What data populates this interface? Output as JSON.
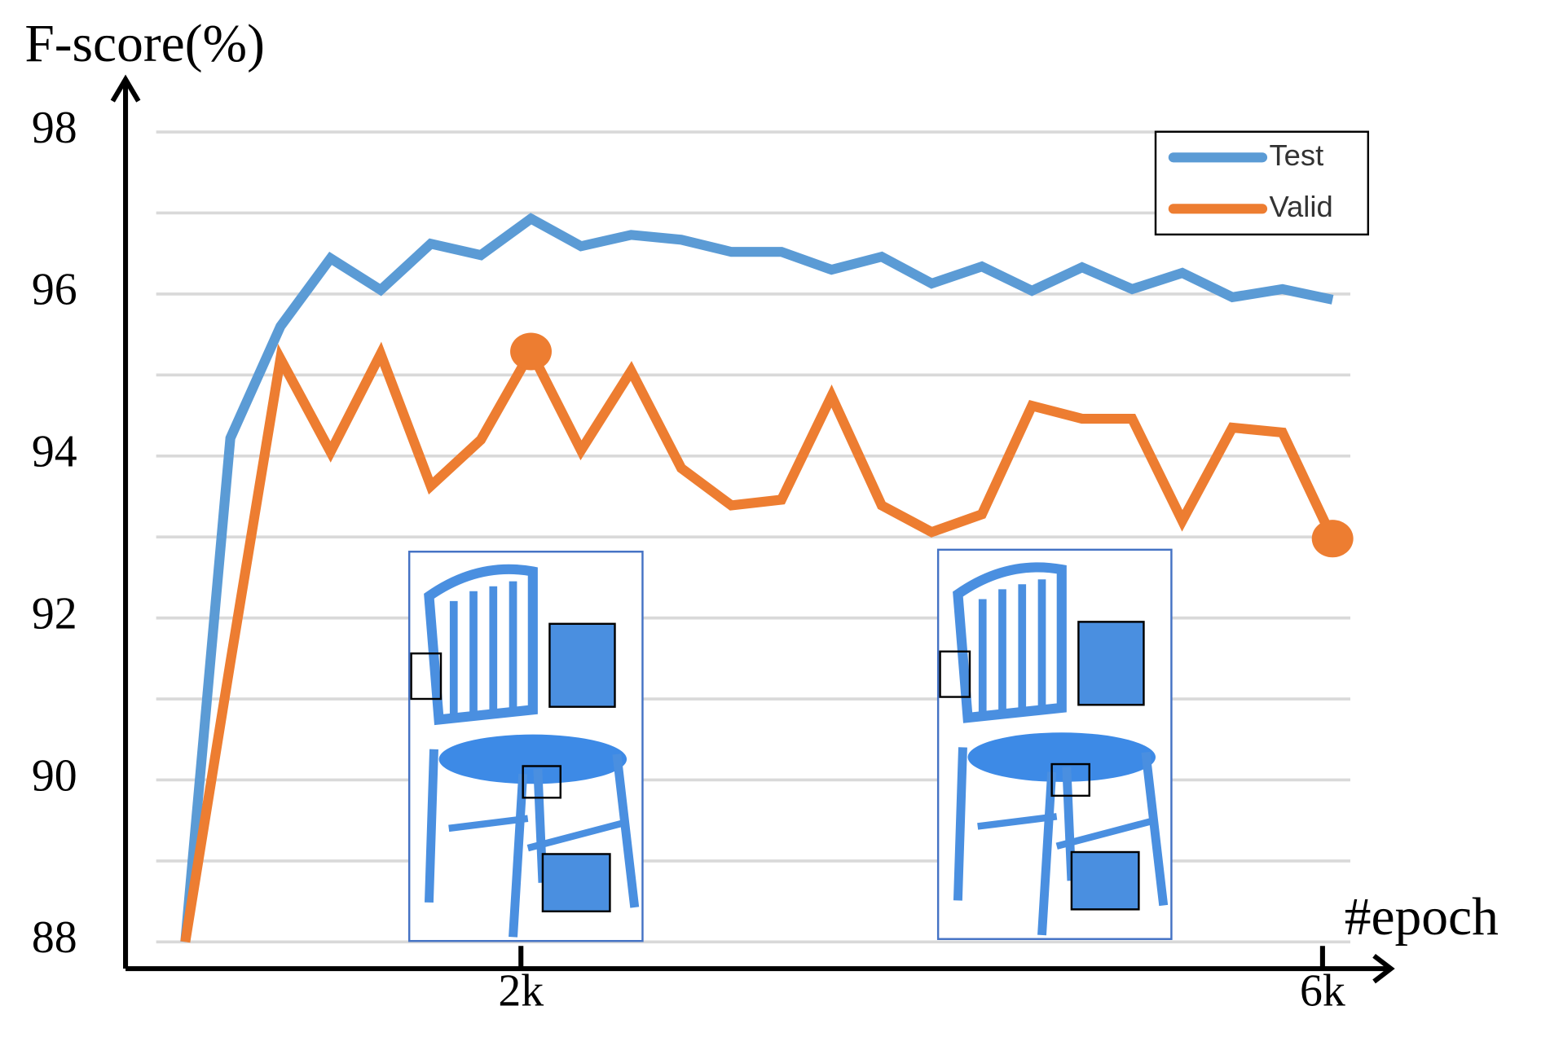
{
  "chart_data": {
    "type": "line",
    "ylabel": "F-score(%)",
    "xlabel": "#epoch",
    "x": [
      325,
      550,
      800,
      1050,
      1300,
      1550,
      1800,
      2050,
      2300,
      2550,
      2800,
      3050,
      3300,
      3550,
      3800,
      4050,
      4300,
      4550,
      4800,
      5050,
      5300,
      5550,
      5800,
      6050
    ],
    "series": [
      {
        "name": "Test",
        "color": "#5b9bd5",
        "values": [
          88,
          94.22,
          95.6,
          96.44,
          96.05,
          96.62,
          96.48,
          96.93,
          96.59,
          96.73,
          96.67,
          96.52,
          96.52,
          96.3,
          96.46,
          96.13,
          96.34,
          96.04,
          96.33,
          96.06,
          96.26,
          95.96,
          96.06,
          95.93
        ]
      },
      {
        "name": "Valid",
        "color": "#ed7d31",
        "highlight": [
          7,
          23
        ],
        "values": [
          88,
          91.45,
          95.2,
          94.05,
          95.26,
          93.63,
          94.2,
          95.29,
          94.07,
          95.05,
          93.85,
          93.39,
          93.46,
          94.74,
          93.39,
          93.06,
          93.28,
          94.62,
          94.46,
          94.46,
          93.2,
          94.35,
          94.29,
          92.98
        ]
      }
    ],
    "xlim": [
      27,
      6331
    ],
    "ylim": [
      87.67,
      98.65
    ],
    "xticks": [
      {
        "value": 2000,
        "label": "2k"
      },
      {
        "value": 6000,
        "label": "6k"
      }
    ],
    "yticks": [
      88,
      90,
      92,
      94,
      96,
      98
    ],
    "ygrid": [
      88,
      89,
      90,
      91,
      92,
      93,
      94,
      95,
      96,
      97,
      98
    ],
    "legend": "upper right"
  }
}
